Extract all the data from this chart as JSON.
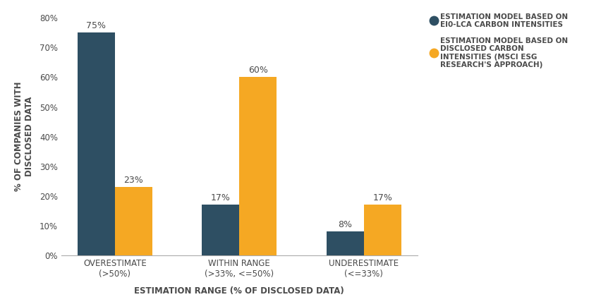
{
  "categories": [
    "OVERESTIMATE\n(>50%)",
    "WITHIN RANGE\n(>33%, <=50%)",
    "UNDERESTIMATE\n(<=33%)"
  ],
  "series1_values": [
    75,
    17,
    8
  ],
  "series2_values": [
    23,
    60,
    17
  ],
  "series1_color": "#2e4f63",
  "series2_color": "#f5a823",
  "series1_label": "ESTIMATION MODEL BASED ON\nEI0-LCA CARBON INTENSITIES",
  "series2_label": "ESTIMATION MODEL BASED ON\nDISCLOSED CARBON\nINTENSITIES (MSCI ESG\nRESEARCH'S APPROACH)",
  "ylabel": "% OF COMPANIES WITH\nDISCLOSED DATA",
  "xlabel": "ESTIMATION RANGE (% OF DISCLOSED DATA)",
  "ylim": [
    0,
    80
  ],
  "yticks": [
    0,
    10,
    20,
    30,
    40,
    50,
    60,
    70,
    80
  ],
  "bar_width": 0.3,
  "background_color": "#ffffff",
  "label_fontsize": 9,
  "axis_label_fontsize": 8.5,
  "tick_label_fontsize": 8.5,
  "legend_fontsize": 7.5,
  "text_color": "#4a4a4a"
}
